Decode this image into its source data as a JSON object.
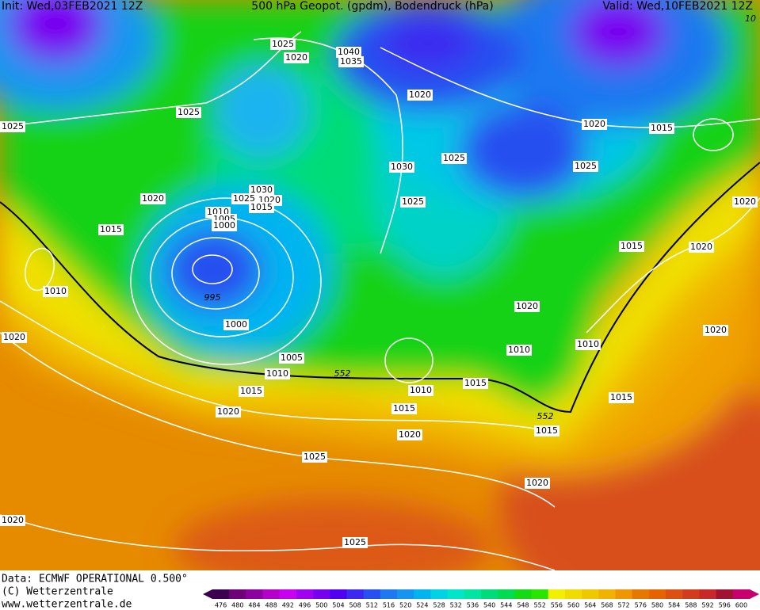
{
  "header": {
    "init": "Init: Wed,03FEB2021 12Z",
    "title": "500 hPa Geopot. (gpdm), Bodendruck (hPa)",
    "valid": "Valid: Wed,10FEB2021 12Z"
  },
  "footer": {
    "source": "Data: ECMWF OPERATIONAL 0.500°",
    "copyright": "(C) Wetterzentrale",
    "url": "www.wetterzentrale.de"
  },
  "isobar_labels": [
    "1025",
    "1020",
    "1040",
    "1035",
    "1025",
    "1025",
    "1020",
    "1020",
    "1015",
    "1030",
    "1025",
    "1025",
    "1020",
    "1030",
    "1025",
    "1020",
    "1015",
    "1010",
    "1005",
    "1000",
    "1025",
    "1020",
    "1015",
    "1015",
    "1020",
    "1010",
    "995",
    "1000",
    "1020",
    "1020",
    "1020",
    "1010",
    "1010",
    "1005",
    "1010",
    "552",
    "1015",
    "1010",
    "1015",
    "1015",
    "1015",
    "1020",
    "552",
    "1015",
    "1020",
    "1025",
    "1020",
    "1020",
    "1025",
    "10"
  ],
  "color_scale": {
    "labels": [
      "476",
      "480",
      "484",
      "488",
      "492",
      "496",
      "500",
      "504",
      "508",
      "512",
      "516",
      "520",
      "524",
      "528",
      "532",
      "536",
      "540",
      "544",
      "548",
      "552",
      "556",
      "560",
      "564",
      "568",
      "572",
      "576",
      "580",
      "584",
      "588",
      "592",
      "596",
      "600"
    ],
    "colors": [
      "#3c0050",
      "#6e0078",
      "#8c00a0",
      "#b400c8",
      "#c800f0",
      "#a000f0",
      "#7800f0",
      "#5000f0",
      "#3c28f0",
      "#2850f0",
      "#1e78f0",
      "#1496f0",
      "#00b4f0",
      "#00d2e6",
      "#00e6c8",
      "#00e6a0",
      "#00dc78",
      "#00dc50",
      "#14dc14",
      "#28e600",
      "#f0f000",
      "#f0dc00",
      "#f0c800",
      "#f0b400",
      "#f09600",
      "#e67800",
      "#e66400",
      "#dc5014",
      "#d23c1e",
      "#c82828",
      "#a01432",
      "#c8006e"
    ]
  }
}
